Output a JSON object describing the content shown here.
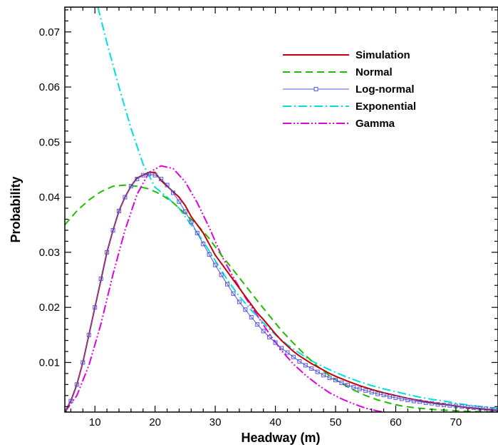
{
  "chart_data": {
    "type": "line",
    "xlabel": "Headway (m)",
    "ylabel": "Probability",
    "xlim": [
      5,
      77
    ],
    "ylim": [
      0.001,
      0.0745
    ],
    "xticks": [
      10,
      20,
      30,
      40,
      50,
      60,
      70
    ],
    "xtick_labels": [
      "10",
      "20",
      "30",
      "40",
      "50",
      "60",
      "70"
    ],
    "yticks": [
      0.01,
      0.02,
      0.03,
      0.04,
      0.05,
      0.06,
      0.07
    ],
    "ytick_labels": [
      "0.01",
      "0.02",
      "0.03",
      "0.04",
      "0.05",
      "0.06",
      "0.07"
    ],
    "grid": false,
    "legend_position": "top-right",
    "series": [
      {
        "name": "Simulation",
        "color": "#c00000",
        "style": "solid",
        "x": [
          5,
          6,
          7,
          8,
          9,
          10,
          11,
          12,
          13,
          14,
          15,
          16,
          17,
          18,
          19,
          20,
          21,
          22,
          23,
          24,
          25,
          26,
          27,
          28,
          29,
          30,
          31,
          32,
          33,
          34,
          35,
          36,
          37,
          38,
          39,
          40,
          41,
          42,
          43,
          44,
          45,
          46,
          47,
          48,
          49,
          50,
          52,
          54,
          56,
          58,
          60,
          62,
          64,
          66,
          68,
          70,
          72,
          74,
          77
        ],
        "y": [
          0.001,
          0.003,
          0.006,
          0.01,
          0.015,
          0.02,
          0.025,
          0.03,
          0.034,
          0.0375,
          0.04,
          0.042,
          0.0435,
          0.044,
          0.0445,
          0.0445,
          0.043,
          0.042,
          0.041,
          0.04,
          0.0385,
          0.0365,
          0.035,
          0.0335,
          0.0315,
          0.0295,
          0.028,
          0.0265,
          0.025,
          0.0235,
          0.022,
          0.0205,
          0.019,
          0.0178,
          0.0165,
          0.0152,
          0.014,
          0.013,
          0.012,
          0.0112,
          0.0105,
          0.0098,
          0.0092,
          0.0086,
          0.008,
          0.0075,
          0.0066,
          0.0058,
          0.0051,
          0.0045,
          0.004,
          0.0035,
          0.0031,
          0.0027,
          0.0024,
          0.0021,
          0.0018,
          0.0016,
          0.0013
        ]
      },
      {
        "name": "Normal",
        "color": "#22bb00",
        "style": "dashed",
        "x": [
          5,
          7,
          9,
          11,
          13,
          15,
          17,
          19,
          21,
          23,
          25,
          27,
          29,
          31,
          33,
          35,
          37,
          39,
          41,
          43,
          45,
          47,
          49,
          51,
          53,
          55,
          57,
          59,
          61,
          63,
          65,
          67,
          69,
          71,
          73,
          75,
          77
        ],
        "y": [
          0.035,
          0.0375,
          0.0395,
          0.041,
          0.042,
          0.0422,
          0.042,
          0.0415,
          0.0405,
          0.039,
          0.037,
          0.035,
          0.0325,
          0.0295,
          0.0268,
          0.024,
          0.0212,
          0.0185,
          0.0158,
          0.0135,
          0.0113,
          0.0093,
          0.0076,
          0.0062,
          0.005,
          0.004,
          0.0032,
          0.0026,
          0.0021,
          0.0018,
          0.0016,
          0.0014,
          0.0013,
          0.0012,
          0.0011,
          0.00105,
          0.001
        ]
      },
      {
        "name": "Log-normal",
        "color": "#5555dd",
        "style": "solid-markers",
        "x": [
          5,
          6,
          7,
          8,
          9,
          10,
          11,
          12,
          13,
          14,
          15,
          16,
          17,
          18,
          19,
          20,
          21,
          22,
          23,
          24,
          25,
          26,
          27,
          28,
          29,
          30,
          31,
          32,
          33,
          34,
          35,
          36,
          37,
          38,
          39,
          40,
          41,
          42,
          43,
          44,
          45,
          46,
          47,
          48,
          49,
          50,
          51,
          52,
          53,
          54,
          55,
          56,
          57,
          58,
          59,
          60,
          61,
          62,
          63,
          64,
          65,
          66,
          67,
          68,
          69,
          70,
          71,
          72,
          73,
          74,
          75,
          76,
          77
        ],
        "y": [
          0.001,
          0.003,
          0.006,
          0.01,
          0.015,
          0.02,
          0.0252,
          0.03,
          0.034,
          0.0375,
          0.04,
          0.042,
          0.0433,
          0.044,
          0.0442,
          0.044,
          0.0433,
          0.0422,
          0.0408,
          0.0392,
          0.0374,
          0.0355,
          0.0335,
          0.0315,
          0.0296,
          0.0277,
          0.0259,
          0.0242,
          0.0225,
          0.021,
          0.0196,
          0.0182,
          0.0169,
          0.0157,
          0.0146,
          0.0136,
          0.0126,
          0.0118,
          0.011,
          0.0102,
          0.0095,
          0.0089,
          0.0083,
          0.0077,
          0.0072,
          0.0068,
          0.0063,
          0.0059,
          0.0055,
          0.0052,
          0.0049,
          0.0046,
          0.0043,
          0.0041,
          0.0038,
          0.0036,
          0.0034,
          0.0032,
          0.003,
          0.0029,
          0.0027,
          0.0026,
          0.0024,
          0.0023,
          0.0022,
          0.0021,
          0.002,
          0.0019,
          0.0018,
          0.0017,
          0.0016,
          0.0015,
          0.0014
        ]
      },
      {
        "name": "Exponential",
        "color": "#00dddd",
        "style": "dash-dot",
        "x": [
          10.5,
          12,
          14,
          16,
          18,
          20,
          22,
          24,
          26,
          28,
          30,
          32,
          34,
          36,
          38,
          40,
          42,
          44,
          46,
          48,
          50,
          52,
          54,
          56,
          58,
          60,
          62,
          64,
          66,
          68,
          70,
          72,
          74,
          77
        ],
        "y": [
          0.0745,
          0.068,
          0.06,
          0.0525,
          0.046,
          0.0418,
          0.04,
          0.038,
          0.035,
          0.032,
          0.0285,
          0.025,
          0.022,
          0.0195,
          0.0172,
          0.015,
          0.0132,
          0.0117,
          0.0103,
          0.0092,
          0.0082,
          0.0073,
          0.0065,
          0.0058,
          0.0052,
          0.0047,
          0.0042,
          0.0037,
          0.0033,
          0.003,
          0.0026,
          0.0023,
          0.002,
          0.0017
        ]
      },
      {
        "name": "Gamma",
        "color": "#dd00dd",
        "style": "dash-dot-dot",
        "x": [
          5,
          7,
          9,
          11,
          13,
          15,
          17,
          19,
          21,
          23,
          25,
          27,
          29,
          31,
          33,
          35,
          37,
          39,
          41,
          43,
          45,
          47,
          49,
          51,
          53,
          55,
          57,
          59,
          61
        ],
        "y": [
          0.001,
          0.004,
          0.0095,
          0.017,
          0.026,
          0.034,
          0.0405,
          0.0445,
          0.0457,
          0.0452,
          0.0428,
          0.039,
          0.0345,
          0.0295,
          0.0255,
          0.0218,
          0.0185,
          0.0152,
          0.0122,
          0.0097,
          0.0077,
          0.006,
          0.0045,
          0.0034,
          0.0025,
          0.0017,
          0.0012,
          0.0008,
          0.0005
        ]
      }
    ]
  }
}
